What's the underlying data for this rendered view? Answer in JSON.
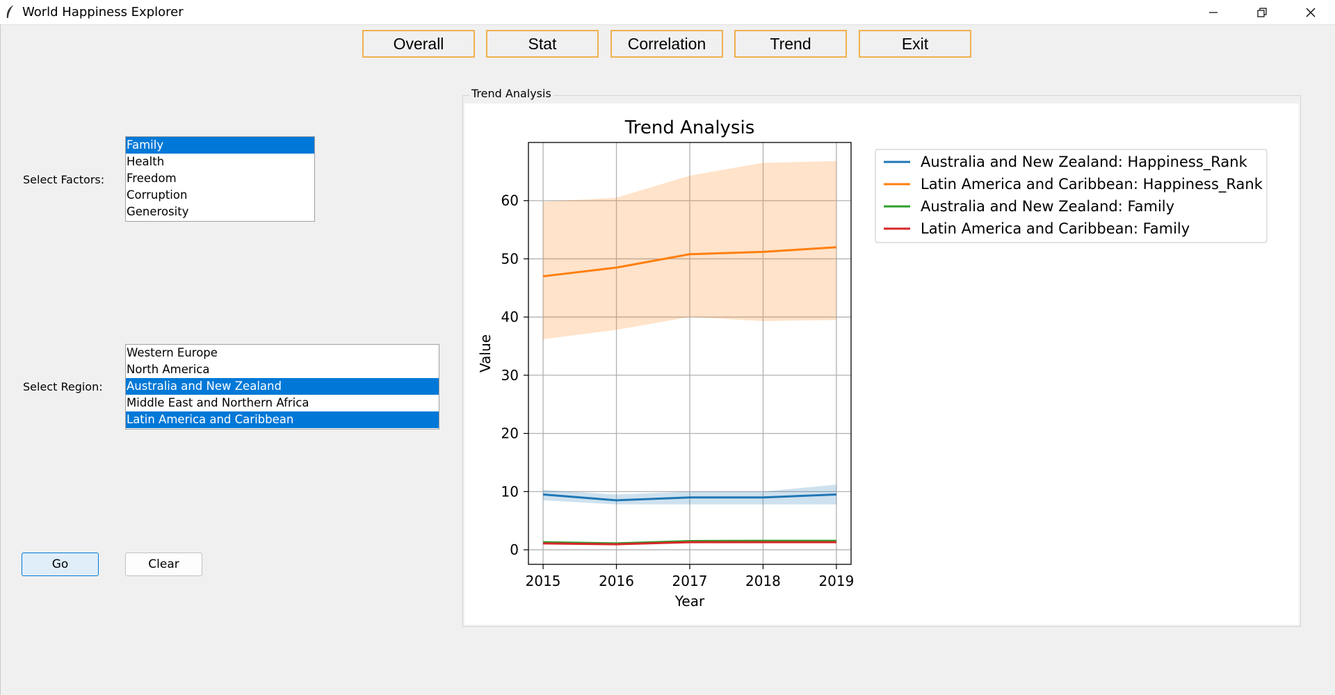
{
  "window": {
    "title": "World Happiness Explorer"
  },
  "toolbar": {
    "buttons": [
      "Overall",
      "Stat",
      "Correlation",
      "Trend",
      "Exit"
    ]
  },
  "factors": {
    "label": "Select Factors:",
    "items": [
      {
        "label": "Family",
        "selected": true
      },
      {
        "label": "Health",
        "selected": false
      },
      {
        "label": "Freedom",
        "selected": false
      },
      {
        "label": "Corruption",
        "selected": false
      },
      {
        "label": "Generosity",
        "selected": false
      }
    ]
  },
  "regions": {
    "label": "Select Region:",
    "items": [
      {
        "label": "Western Europe",
        "selected": false
      },
      {
        "label": "North America",
        "selected": false
      },
      {
        "label": "Australia and New Zealand",
        "selected": true
      },
      {
        "label": "Middle East and Northern Africa",
        "selected": false
      },
      {
        "label": "Latin America and Caribbean",
        "selected": true
      }
    ]
  },
  "actions": {
    "go_label": "Go",
    "clear_label": "Clear"
  },
  "panel": {
    "label": "Trend Analysis"
  },
  "colors": {
    "selection": "#0078d7",
    "button_border": "#f0b050"
  },
  "chart_data": {
    "type": "line",
    "title": "Trend Analysis",
    "xlabel": "Year",
    "ylabel": "Value",
    "x": [
      2015,
      2016,
      2017,
      2018,
      2019
    ],
    "xlim": [
      2014.8,
      2019.2
    ],
    "ylim": [
      -2.5,
      70
    ],
    "yticks": [
      0,
      10,
      20,
      30,
      40,
      50,
      60
    ],
    "grid": true,
    "legend_position": "outside-top-right",
    "series": [
      {
        "name": "Australia and New Zealand: Happiness_Rank",
        "color": "#1f77b4",
        "values": [
          9.5,
          8.5,
          9,
          9,
          9.5
        ],
        "lower": [
          8.5,
          7.8,
          7.8,
          7.8,
          7.8
        ],
        "upper": [
          10.3,
          9.5,
          10,
          10,
          11.2
        ]
      },
      {
        "name": "Latin America and Caribbean: Happiness_Rank",
        "color": "#ff7f0e",
        "values": [
          47,
          48.5,
          50.8,
          51.2,
          52
        ],
        "lower": [
          36.2,
          37.8,
          40,
          39.3,
          39.5
        ],
        "upper": [
          59.8,
          60.5,
          64.3,
          66.5,
          66.8
        ]
      },
      {
        "name": "Australia and New Zealand: Family",
        "color": "#2ca02c",
        "values": [
          1.3,
          1.1,
          1.5,
          1.55,
          1.55
        ]
      },
      {
        "name": "Latin America and Caribbean: Family",
        "color": "#d62728",
        "values": [
          1.1,
          0.95,
          1.3,
          1.3,
          1.3
        ]
      }
    ]
  }
}
